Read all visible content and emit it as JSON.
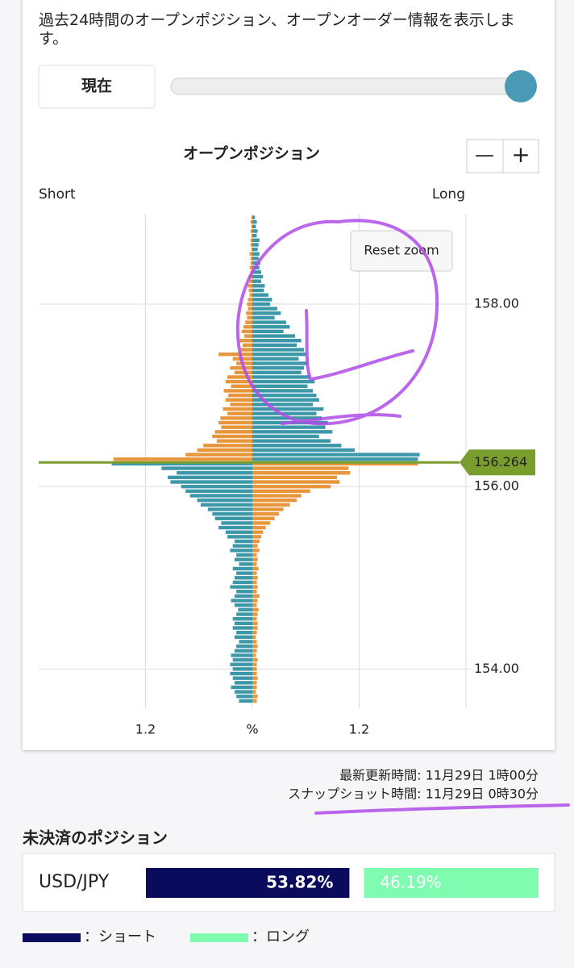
{
  "description": "過去24時間のオープンポジション、オープンオーダー情報を表示します。",
  "controls": {
    "now": "現在",
    "zoom_out": "—",
    "zoom_in": "+",
    "reset_zoom": "Reset zoom"
  },
  "chart_data": {
    "type": "bar",
    "orientation": "horizontal",
    "title": "オープンポジション",
    "current_price": 156.264,
    "xlim": [
      -2.4,
      2.4
    ],
    "xticks": [
      {
        "value": -1.2,
        "label": "1.2"
      },
      {
        "value": 0,
        "label": "%"
      },
      1.2
    ],
    "ylim": [
      153.57,
      158.99
    ],
    "yticks": [
      {
        "value": 154,
        "label": "154.00"
      },
      {
        "value": 156,
        "label": "156.00"
      },
      {
        "value": 158,
        "label": "158.00"
      }
    ],
    "grid": true,
    "current_color": "#7a9e2e",
    "prices": [
      158.95,
      158.9,
      158.85,
      158.8,
      158.75,
      158.7,
      158.65,
      158.6,
      158.55,
      158.5,
      158.45,
      158.4,
      158.35,
      158.3,
      158.25,
      158.2,
      158.15,
      158.1,
      158.05,
      158,
      157.95,
      157.9,
      157.85,
      157.8,
      157.75,
      157.7,
      157.65,
      157.6,
      157.55,
      157.5,
      157.45,
      157.4,
      157.35,
      157.3,
      157.25,
      157.2,
      157.15,
      157.1,
      157.05,
      157,
      156.95,
      156.9,
      156.85,
      156.8,
      156.75,
      156.7,
      156.65,
      156.6,
      156.55,
      156.5,
      156.45,
      156.4,
      156.35,
      156.3,
      156.25,
      156.2,
      156.15,
      156.1,
      156.05,
      156,
      155.95,
      155.9,
      155.85,
      155.8,
      155.75,
      155.7,
      155.65,
      155.6,
      155.55,
      155.5,
      155.45,
      155.4,
      155.35,
      155.3,
      155.25,
      155.2,
      155.15,
      155.1,
      155.05,
      155,
      154.95,
      154.9,
      154.85,
      154.8,
      154.75,
      154.7,
      154.65,
      154.6,
      154.55,
      154.5,
      154.45,
      154.4,
      154.35,
      154.3,
      154.25,
      154.2,
      154.15,
      154.1,
      154.05,
      154,
      153.95,
      153.9,
      153.85,
      153.8,
      153.75,
      153.7,
      153.65
    ],
    "series": [
      {
        "name": "Short",
        "side": "left",
        "color_above": "#e8963c",
        "color_below": "#3c98a8",
        "values": [
          0.01,
          0.02,
          0.01,
          0.02,
          0.01,
          0.02,
          0.02,
          0.01,
          0.03,
          0.02,
          0.02,
          0.03,
          0.02,
          0.04,
          0.03,
          0.05,
          0.04,
          0.03,
          0.05,
          0.06,
          0.05,
          0.07,
          0.06,
          0.08,
          0.1,
          0.12,
          0.09,
          0.14,
          0.11,
          0.13,
          0.38,
          0.22,
          0.18,
          0.25,
          0.2,
          0.28,
          0.3,
          0.24,
          0.32,
          0.27,
          0.3,
          0.25,
          0.33,
          0.28,
          0.36,
          0.38,
          0.35,
          0.42,
          0.45,
          0.4,
          0.55,
          0.62,
          0.75,
          1.56,
          1.58,
          1.02,
          0.85,
          0.95,
          0.92,
          0.8,
          0.75,
          0.7,
          0.62,
          0.58,
          0.5,
          0.45,
          0.42,
          0.35,
          0.38,
          0.3,
          0.28,
          0.2,
          0.22,
          0.25,
          0.18,
          0.2,
          0.15,
          0.22,
          0.18,
          0.2,
          0.22,
          0.25,
          0.18,
          0.2,
          0.24,
          0.2,
          0.16,
          0.18,
          0.22,
          0.2,
          0.22,
          0.18,
          0.2,
          0.15,
          0.18,
          0.2,
          0.24,
          0.22,
          0.25,
          0.22,
          0.25,
          0.22,
          0.2,
          0.24,
          0.2,
          0.18,
          0.15
        ]
      },
      {
        "name": "Long",
        "side": "right",
        "color_above": "#3c98a8",
        "color_below": "#e8963c",
        "values": [
          0.03,
          0.05,
          0.04,
          0.06,
          0.05,
          0.08,
          0.07,
          0.06,
          0.08,
          0.07,
          0.09,
          0.08,
          0.1,
          0.12,
          0.1,
          0.14,
          0.13,
          0.18,
          0.22,
          0.2,
          0.28,
          0.32,
          0.25,
          0.38,
          0.42,
          0.35,
          0.48,
          0.55,
          0.5,
          0.58,
          0.6,
          0.52,
          0.62,
          0.58,
          0.55,
          0.65,
          0.7,
          0.62,
          0.68,
          0.72,
          0.75,
          0.68,
          0.8,
          0.72,
          0.78,
          0.85,
          0.82,
          0.9,
          0.75,
          0.88,
          1.0,
          1.15,
          1.88,
          1.86,
          1.86,
          1.08,
          1.1,
          0.95,
          0.98,
          0.88,
          0.65,
          0.55,
          0.5,
          0.42,
          0.35,
          0.3,
          0.25,
          0.2,
          0.15,
          0.12,
          0.1,
          0.08,
          0.06,
          0.08,
          0.05,
          0.06,
          0.05,
          0.07,
          0.05,
          0.06,
          0.05,
          0.06,
          0.05,
          0.08,
          0.06,
          0.05,
          0.07,
          0.06,
          0.05,
          0.06,
          0.06,
          0.05,
          0.04,
          0.05,
          0.06,
          0.05,
          0.04,
          0.06,
          0.05,
          0.05,
          0.05,
          0.06,
          0.05,
          0.05,
          0.04,
          0.06,
          0.05
        ]
      }
    ]
  },
  "timestamps": [
    "最新更新時間: 11月29日 1時00分",
    "スナップショット時間: 11月29日 0時30分"
  ],
  "open_positions": {
    "title": "未決済のポジション",
    "pair": "USD/JPY",
    "values": [
      53.82,
      46.19
    ],
    "value_labels": [
      "53.82%",
      "46.19%"
    ],
    "colors": [
      "#0b0b5e",
      "#7ffcb0"
    ],
    "legend": [
      "：ショート",
      "：ロング"
    ]
  }
}
